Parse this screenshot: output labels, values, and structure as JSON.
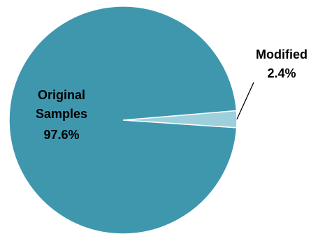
{
  "chart_data": {
    "type": "pie",
    "slices": [
      {
        "label": "Original Samples",
        "label_lines": [
          "Original",
          "Samples"
        ],
        "value": 97.6,
        "display": "97.6%",
        "color": "#3f97ae"
      },
      {
        "label": "Modified",
        "label_lines": [
          "Modified"
        ],
        "value": 2.4,
        "display": "2.4%",
        "color": "#9dcfdc"
      }
    ],
    "title": "",
    "legend": "none",
    "start_angle_deg": 0,
    "direction": "counterclockwise",
    "slice_stroke": "#ffffff"
  }
}
